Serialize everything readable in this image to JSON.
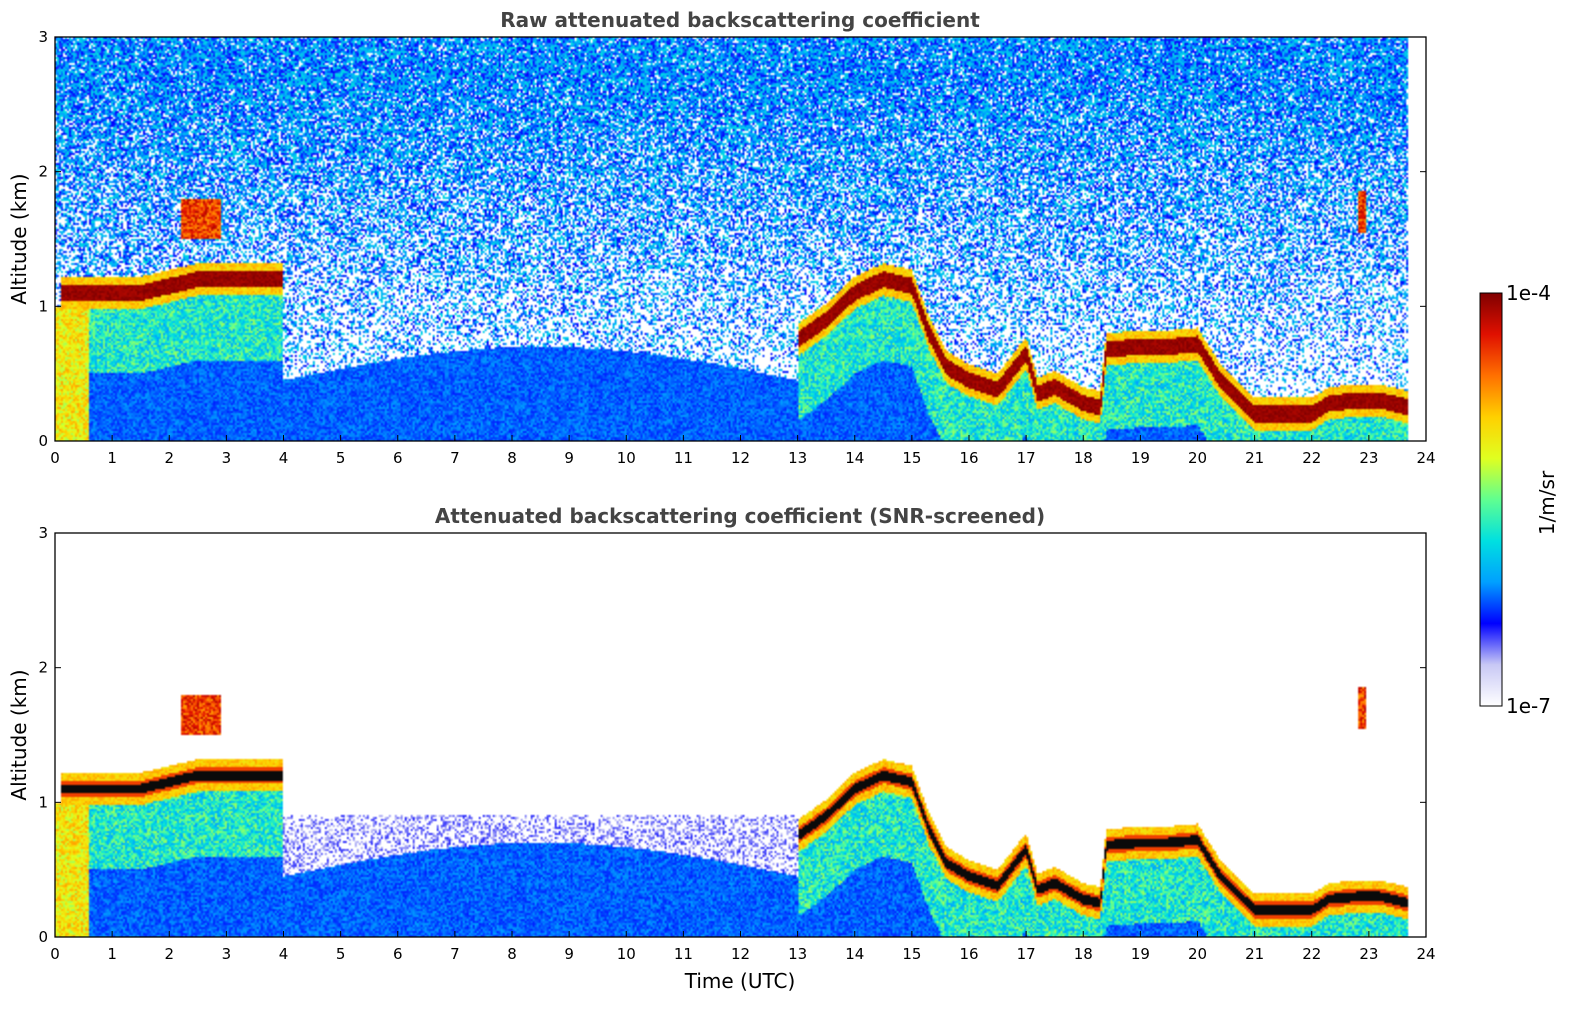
{
  "chart_data": [
    {
      "type": "heatmap",
      "title": "Raw attenuated backscattering coefficient",
      "xlabel": "",
      "ylabel": "Altitude (km)",
      "xlim": [
        0,
        24
      ],
      "ylim": [
        0,
        3
      ],
      "xticks": [
        "0",
        "1",
        "2",
        "3",
        "4",
        "5",
        "6",
        "7",
        "8",
        "9",
        "10",
        "11",
        "12",
        "13",
        "14",
        "15",
        "16",
        "17",
        "18",
        "19",
        "20",
        "21",
        "22",
        "23",
        "24"
      ],
      "yticks": [
        "0",
        "1",
        "2",
        "3"
      ],
      "noise": "high",
      "data_end_time": 23.7,
      "layer_height_km": [
        [
          0.1,
          1.1
        ],
        [
          0.5,
          1.1
        ],
        [
          1.0,
          1.1
        ],
        [
          1.5,
          1.1
        ],
        [
          2.0,
          1.15
        ],
        [
          2.5,
          1.2
        ],
        [
          3.0,
          1.2
        ],
        [
          3.5,
          1.2
        ],
        [
          4.0,
          1.2
        ],
        [
          13.0,
          0.75
        ],
        [
          13.5,
          0.9
        ],
        [
          14.0,
          1.1
        ],
        [
          14.5,
          1.2
        ],
        [
          15.0,
          1.15
        ],
        [
          15.3,
          0.8
        ],
        [
          15.6,
          0.55
        ],
        [
          16.0,
          0.45
        ],
        [
          16.5,
          0.38
        ],
        [
          17.0,
          0.65
        ],
        [
          17.2,
          0.35
        ],
        [
          17.5,
          0.4
        ],
        [
          18.0,
          0.28
        ],
        [
          18.3,
          0.25
        ],
        [
          18.4,
          0.68
        ],
        [
          19.0,
          0.7
        ],
        [
          19.5,
          0.7
        ],
        [
          20.0,
          0.72
        ],
        [
          20.4,
          0.45
        ],
        [
          21.0,
          0.2
        ],
        [
          21.5,
          0.2
        ],
        [
          22.0,
          0.2
        ],
        [
          22.3,
          0.28
        ],
        [
          22.8,
          0.3
        ],
        [
          23.2,
          0.3
        ],
        [
          23.7,
          0.25
        ]
      ],
      "elevated_layers": [
        {
          "t_start": 2.2,
          "t_end": 2.9,
          "height_km": 1.65
        },
        {
          "t_start": 22.8,
          "t_end": 22.95,
          "height_km": 1.7
        }
      ]
    },
    {
      "type": "heatmap",
      "title": "Attenuated backscattering coefficient (SNR-screened)",
      "xlabel": "Time (UTC)",
      "ylabel": "Altitude (km)",
      "xlim": [
        0,
        24
      ],
      "ylim": [
        0,
        3
      ],
      "xticks": [
        "0",
        "1",
        "2",
        "3",
        "4",
        "5",
        "6",
        "7",
        "8",
        "9",
        "10",
        "11",
        "12",
        "13",
        "14",
        "15",
        "16",
        "17",
        "18",
        "19",
        "20",
        "21",
        "22",
        "23",
        "24"
      ],
      "yticks": [
        "0",
        "1",
        "2",
        "3"
      ],
      "noise": "screened",
      "data_end_time": 23.7,
      "layer_height_km": [
        [
          0.1,
          1.1
        ],
        [
          0.5,
          1.1
        ],
        [
          1.0,
          1.1
        ],
        [
          1.5,
          1.1
        ],
        [
          2.0,
          1.15
        ],
        [
          2.5,
          1.2
        ],
        [
          3.0,
          1.2
        ],
        [
          3.5,
          1.2
        ],
        [
          4.0,
          1.2
        ],
        [
          13.0,
          0.75
        ],
        [
          13.5,
          0.9
        ],
        [
          14.0,
          1.1
        ],
        [
          14.5,
          1.2
        ],
        [
          15.0,
          1.15
        ],
        [
          15.3,
          0.8
        ],
        [
          15.6,
          0.55
        ],
        [
          16.0,
          0.45
        ],
        [
          16.5,
          0.38
        ],
        [
          17.0,
          0.65
        ],
        [
          17.2,
          0.35
        ],
        [
          17.5,
          0.4
        ],
        [
          18.0,
          0.28
        ],
        [
          18.3,
          0.25
        ],
        [
          18.4,
          0.68
        ],
        [
          19.0,
          0.7
        ],
        [
          19.5,
          0.7
        ],
        [
          20.0,
          0.72
        ],
        [
          20.4,
          0.45
        ],
        [
          21.0,
          0.2
        ],
        [
          21.5,
          0.2
        ],
        [
          22.0,
          0.2
        ],
        [
          22.3,
          0.28
        ],
        [
          22.8,
          0.3
        ],
        [
          23.2,
          0.3
        ],
        [
          23.7,
          0.25
        ]
      ],
      "elevated_layers": [
        {
          "t_start": 2.2,
          "t_end": 2.9,
          "height_km": 1.65
        },
        {
          "t_start": 22.8,
          "t_end": 22.95,
          "height_km": 1.7
        }
      ]
    }
  ],
  "colorbar": {
    "label": "1/m/sr",
    "max_label": "1e-4",
    "min_label": "1e-7",
    "colors": [
      "#ffffff",
      "#c8c8f5",
      "#0000ff",
      "#00a0ff",
      "#00e0e0",
      "#60ff90",
      "#e0ff20",
      "#ffd000",
      "#ff7000",
      "#e01000",
      "#800000"
    ]
  }
}
